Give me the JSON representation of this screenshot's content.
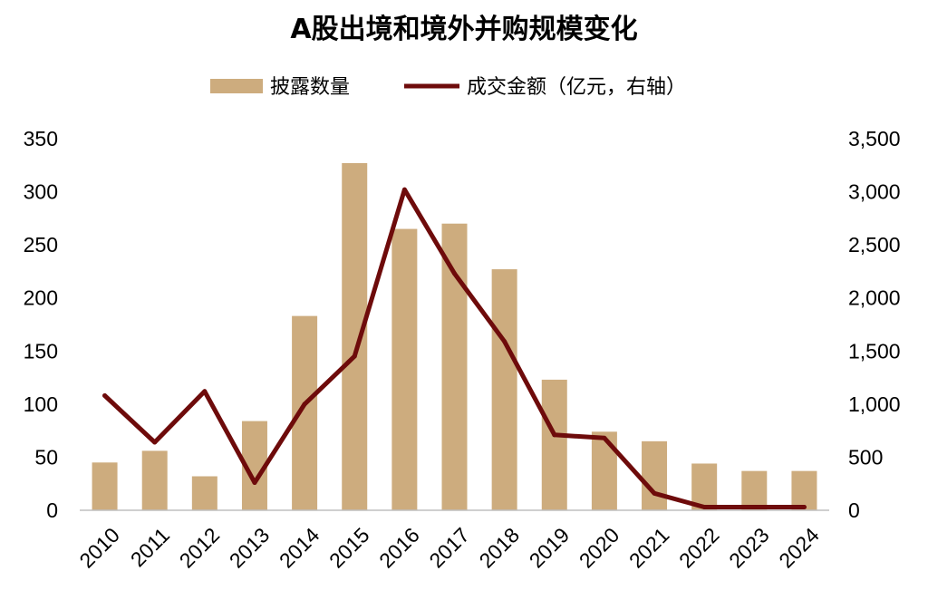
{
  "chart_data": {
    "type": "bar+line",
    "title": "A股出境和境外并购规模变化",
    "categories": [
      "2010",
      "2011",
      "2012",
      "2013",
      "2014",
      "2015",
      "2016",
      "2017",
      "2018",
      "2019",
      "2020",
      "2021",
      "2022",
      "2023",
      "2024"
    ],
    "series": [
      {
        "name": "披露数量",
        "type": "bar",
        "axis": "left",
        "color": "#cdac7e",
        "values": [
          45,
          56,
          32,
          84,
          183,
          327,
          265,
          270,
          227,
          123,
          74,
          65,
          44,
          37,
          37
        ]
      },
      {
        "name": "成交金额（亿元，右轴）",
        "type": "line",
        "axis": "right",
        "color": "#6e0b0b",
        "values": [
          1080,
          640,
          1120,
          260,
          1000,
          1450,
          3020,
          2230,
          1590,
          710,
          680,
          160,
          30,
          30,
          30
        ]
      }
    ],
    "y_left": {
      "min": 0,
      "max": 350,
      "ticks": [
        "0",
        "50",
        "100",
        "150",
        "200",
        "250",
        "300",
        "350"
      ]
    },
    "y_right": {
      "min": 0,
      "max": 3500,
      "ticks": [
        "0",
        "500",
        "1,000",
        "1,500",
        "2,000",
        "2,500",
        "3,000",
        "3,500"
      ]
    },
    "xlabel": "",
    "ylabel": "",
    "grid": false,
    "legend_position": "top-center"
  }
}
